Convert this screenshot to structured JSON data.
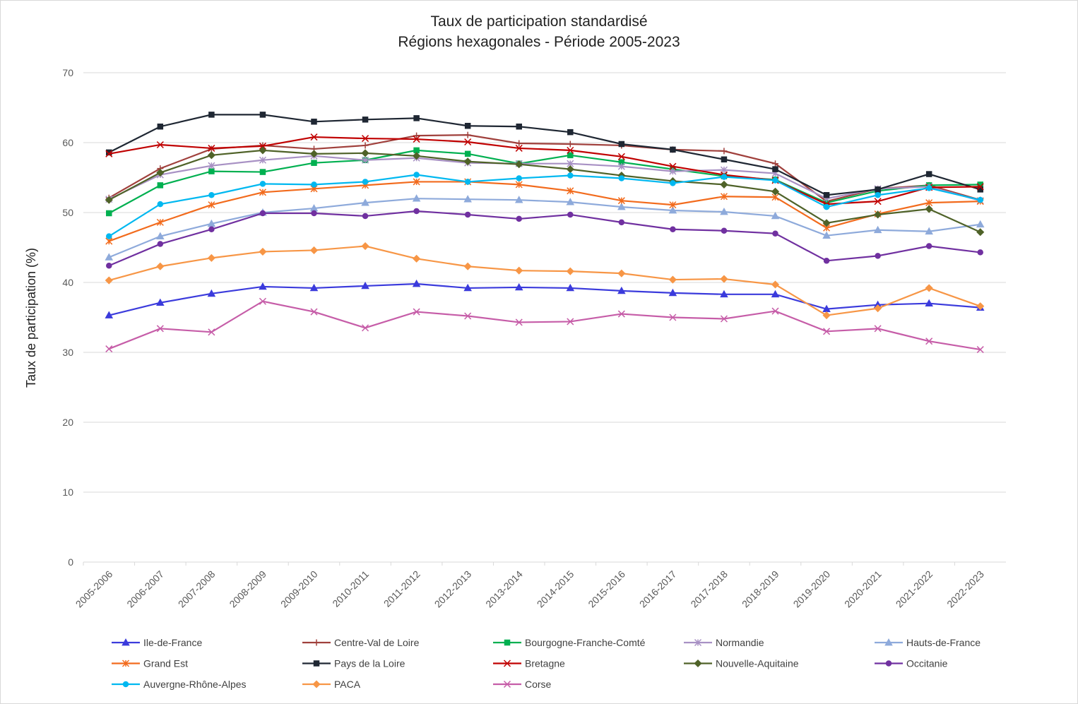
{
  "chart_data": {
    "type": "line",
    "title": "Taux de participation standardisé",
    "subtitle": "Régions hexagonales - Période 2005-2023",
    "y_label": "Taux de participation (%)",
    "categories": [
      "2005-2006",
      "2006-2007",
      "2007-2008",
      "2008-2009",
      "2009-2010",
      "2010-2011",
      "2011-2012",
      "2012-2013",
      "2013-2014",
      "2014-2015",
      "2015-2016",
      "2016-2017",
      "2017-2018",
      "2018-2019",
      "2019-2020",
      "2020-2021",
      "2021-2022",
      "2022-2023"
    ],
    "ylim": [
      0,
      70
    ],
    "yticks": [
      0,
      10,
      20,
      30,
      40,
      50,
      60,
      70
    ],
    "grid": true,
    "series": [
      {
        "name": "Ile-de-France",
        "color": "#3b3bdc",
        "marker": "triangle",
        "values": [
          35.3,
          37.1,
          38.4,
          39.4,
          39.2,
          39.5,
          39.8,
          39.2,
          39.3,
          39.2,
          38.8,
          38.5,
          38.3,
          38.3,
          36.2,
          36.8,
          37.0,
          36.4
        ]
      },
      {
        "name": "Centre-Val de Loire",
        "color": "#a0403c",
        "marker": "plus",
        "values": [
          52.1,
          56.3,
          59.1,
          59.6,
          59.1,
          59.6,
          61.0,
          61.1,
          59.9,
          59.8,
          59.6,
          59.0,
          58.8,
          57.0,
          51.6,
          53.4,
          53.9,
          51.8
        ]
      },
      {
        "name": "Bourgogne-Franche-Comté",
        "color": "#00b050",
        "marker": "square",
        "values": [
          49.9,
          53.9,
          55.9,
          55.8,
          57.1,
          57.5,
          58.9,
          58.4,
          57.0,
          58.2,
          57.2,
          56.2,
          55.2,
          54.7,
          51.4,
          53.1,
          53.9,
          54.0
        ]
      },
      {
        "name": "Normandie",
        "color": "#a891c4",
        "marker": "star",
        "values": [
          51.9,
          55.4,
          56.7,
          57.5,
          58.1,
          57.5,
          57.8,
          57.1,
          57.0,
          57.0,
          56.6,
          55.9,
          56.1,
          55.6,
          52.0,
          53.4,
          53.7,
          51.7
        ]
      },
      {
        "name": "Hauts-de-France",
        "color": "#8eaadb",
        "marker": "triangle",
        "values": [
          43.6,
          46.6,
          48.4,
          50.0,
          50.6,
          51.4,
          52.0,
          51.9,
          51.8,
          51.5,
          50.8,
          50.3,
          50.1,
          49.5,
          46.7,
          47.5,
          47.3,
          48.3
        ]
      },
      {
        "name": "Grand Est",
        "color": "#f26b1d",
        "marker": "star",
        "values": [
          45.9,
          48.6,
          51.1,
          52.9,
          53.4,
          53.9,
          54.4,
          54.4,
          54.0,
          53.1,
          51.7,
          51.1,
          52.3,
          52.2,
          47.8,
          49.8,
          51.4,
          51.6
        ]
      },
      {
        "name": "Pays de la Loire",
        "color": "#1f2733",
        "marker": "square",
        "values": [
          58.6,
          62.3,
          64.0,
          64.0,
          63.0,
          63.3,
          63.5,
          62.4,
          62.3,
          61.5,
          59.8,
          59.0,
          57.6,
          56.2,
          52.5,
          53.3,
          55.5,
          53.3
        ]
      },
      {
        "name": "Bretagne",
        "color": "#c00000",
        "marker": "x",
        "values": [
          58.4,
          59.7,
          59.2,
          59.5,
          60.8,
          60.6,
          60.5,
          60.1,
          59.2,
          58.9,
          58.0,
          56.6,
          55.4,
          54.6,
          51.2,
          51.6,
          53.6,
          53.7
        ]
      },
      {
        "name": "Nouvelle-Aquitaine",
        "color": "#4f6228",
        "marker": "diamond",
        "values": [
          51.8,
          55.7,
          58.2,
          58.9,
          58.4,
          58.5,
          58.1,
          57.3,
          56.9,
          56.2,
          55.3,
          54.5,
          54.0,
          53.0,
          48.5,
          49.7,
          50.5,
          47.2
        ]
      },
      {
        "name": "Occitanie",
        "color": "#7030a0",
        "marker": "circle",
        "values": [
          42.4,
          45.5,
          47.6,
          49.9,
          49.9,
          49.5,
          50.2,
          49.7,
          49.1,
          49.7,
          48.6,
          47.6,
          47.4,
          47.0,
          43.1,
          43.8,
          45.2,
          44.3
        ]
      },
      {
        "name": "Auvergne-Rhône-Alpes",
        "color": "#00b8f0",
        "marker": "circle",
        "values": [
          46.6,
          51.2,
          52.5,
          54.1,
          54.0,
          54.4,
          55.4,
          54.4,
          54.9,
          55.3,
          54.9,
          54.2,
          55.1,
          54.6,
          50.8,
          52.5,
          53.5,
          51.8
        ]
      },
      {
        "name": "PACA",
        "color": "#f79646",
        "marker": "diamond",
        "values": [
          40.3,
          42.3,
          43.5,
          44.4,
          44.6,
          45.2,
          43.4,
          42.3,
          41.7,
          41.6,
          41.3,
          40.4,
          40.5,
          39.7,
          35.3,
          36.3,
          39.2,
          36.6
        ]
      },
      {
        "name": "Corse",
        "color": "#c65da8",
        "marker": "x",
        "values": [
          30.5,
          33.4,
          32.9,
          37.3,
          35.8,
          33.5,
          35.8,
          35.2,
          34.3,
          34.4,
          35.5,
          35.0,
          34.8,
          35.9,
          33.0,
          33.4,
          31.6,
          30.4
        ]
      }
    ]
  }
}
